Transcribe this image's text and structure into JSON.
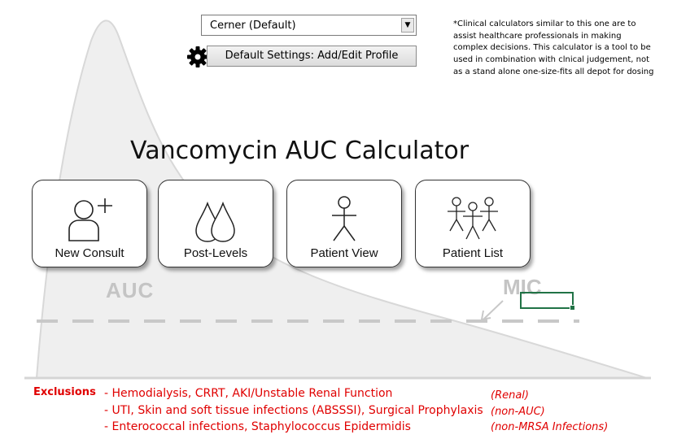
{
  "profile_select": {
    "value": "Cerner (Default)"
  },
  "settings_button": {
    "label": "Default Settings: Add/Edit Profile"
  },
  "disclaimer": {
    "lines": [
      "*Clinical calculators similar to this one are to",
      "assist healthcare professionals in making",
      "complex decisions. This calculator is a tool to be",
      "used in combination with clnical judgement, not",
      "as a stand alone one-size-fits all depot for dosing"
    ]
  },
  "title": "Vancomycin AUC Calculator",
  "tiles": {
    "new_consult": "New Consult",
    "post_levels": "Post-Levels",
    "patient_view": "Patient View",
    "patient_list": "Patient List"
  },
  "background": {
    "auc_label": "AUC",
    "mic_label": "MIC"
  },
  "exclusions": {
    "heading": "Exclusions",
    "items": [
      {
        "text": "- Hemodialysis, CRRT, AKI/Unstable Renal Function",
        "note": "(Renal)"
      },
      {
        "text": "- UTI, Skin and soft tissue infections (ABSSSI), Surgical Prophylaxis",
        "note": "(non-AUC)"
      },
      {
        "text": "- Enterococcal infections, Staphylococcus Epidermidis",
        "note": "(non-MRSA Infections)"
      }
    ]
  },
  "colors": {
    "exclusion_red": "#e00000",
    "curve_fill": "#efefef",
    "selection_green": "#217346"
  }
}
